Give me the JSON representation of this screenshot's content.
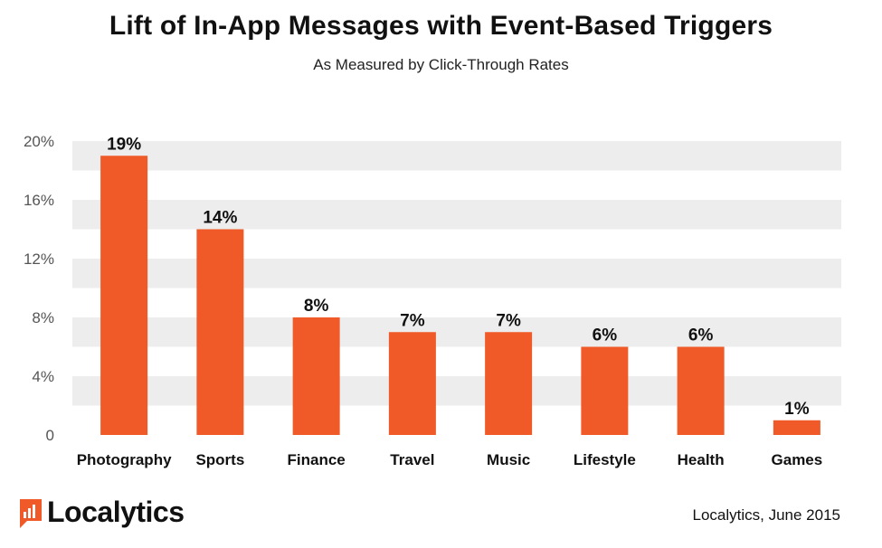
{
  "header": {
    "title": "Lift of In-App Messages with Event-Based Triggers",
    "subtitle": "As Measured by Click-Through Rates"
  },
  "footer": {
    "brand": "Localytics",
    "source": "Localytics, June 2015"
  },
  "colors": {
    "bar": "#f05a28",
    "band": "#ededed",
    "logo": "#f05a28"
  },
  "chart_data": {
    "type": "bar",
    "title": "Lift of In-App Messages with Event-Based Triggers",
    "subtitle": "As Measured by Click-Through Rates",
    "xlabel": "",
    "ylabel": "",
    "ylim": [
      0,
      22
    ],
    "yticks": [
      0,
      4,
      8,
      12,
      16,
      20
    ],
    "ytick_labels": [
      "0",
      "4%",
      "8%",
      "12%",
      "16%",
      "20%"
    ],
    "categories": [
      "Photography",
      "Sports",
      "Finance",
      "Travel",
      "Music",
      "Lifestyle",
      "Health",
      "Games"
    ],
    "values": [
      19,
      14,
      8,
      7,
      7,
      6,
      6,
      1
    ],
    "data_labels": [
      "19%",
      "14%",
      "8%",
      "7%",
      "7%",
      "6%",
      "6%",
      "1%"
    ]
  }
}
